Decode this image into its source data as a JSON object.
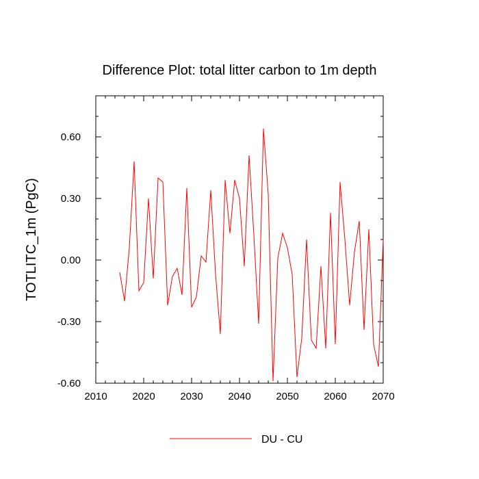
{
  "chart_data": {
    "type": "line",
    "title": "Difference Plot: total litter carbon to 1m depth",
    "xlabel": "",
    "ylabel": "TOTLITC_1m  (PgC)",
    "xlim": [
      2010,
      2070
    ],
    "ylim": [
      -0.6,
      0.8
    ],
    "xticks": [
      2010,
      2020,
      2030,
      2040,
      2050,
      2060,
      2070
    ],
    "xtick_labels": [
      "2010",
      "2020",
      "2030",
      "2040",
      "2050",
      "2060",
      "2070"
    ],
    "yticks": [
      -0.6,
      -0.3,
      0.0,
      0.3,
      0.6
    ],
    "ytick_labels": [
      "-0.60",
      "-0.30",
      "0.00",
      "0.30",
      "0.60"
    ],
    "legend_position": "bottom-center",
    "series": [
      {
        "name": "DU - CU",
        "color": "#ff0000",
        "x": [
          2015,
          2016,
          2017,
          2018,
          2019,
          2020,
          2021,
          2022,
          2023,
          2024,
          2025,
          2026,
          2027,
          2028,
          2029,
          2030,
          2031,
          2032,
          2033,
          2034,
          2035,
          2036,
          2037,
          2038,
          2039,
          2040,
          2041,
          2042,
          2043,
          2044,
          2045,
          2046,
          2047,
          2048,
          2049,
          2050,
          2051,
          2052,
          2053,
          2054,
          2055,
          2056,
          2057,
          2058,
          2059,
          2060,
          2061,
          2062,
          2063,
          2064,
          2065,
          2066,
          2067,
          2068,
          2069,
          2070
        ],
        "values": [
          -0.06,
          -0.2,
          0.06,
          0.48,
          -0.15,
          -0.11,
          0.3,
          -0.09,
          0.4,
          0.38,
          -0.22,
          -0.08,
          -0.04,
          -0.17,
          0.35,
          -0.23,
          -0.18,
          0.02,
          -0.01,
          0.34,
          -0.07,
          -0.36,
          0.39,
          0.13,
          0.39,
          0.3,
          -0.03,
          0.51,
          0.12,
          -0.31,
          0.64,
          0.32,
          -0.59,
          0.01,
          0.13,
          0.06,
          -0.07,
          -0.57,
          -0.38,
          0.1,
          -0.39,
          -0.43,
          -0.03,
          -0.43,
          0.23,
          -0.41,
          0.38,
          0.1,
          -0.22,
          0.04,
          0.19,
          -0.34,
          0.15,
          -0.41,
          -0.52,
          0.1
        ]
      }
    ]
  }
}
